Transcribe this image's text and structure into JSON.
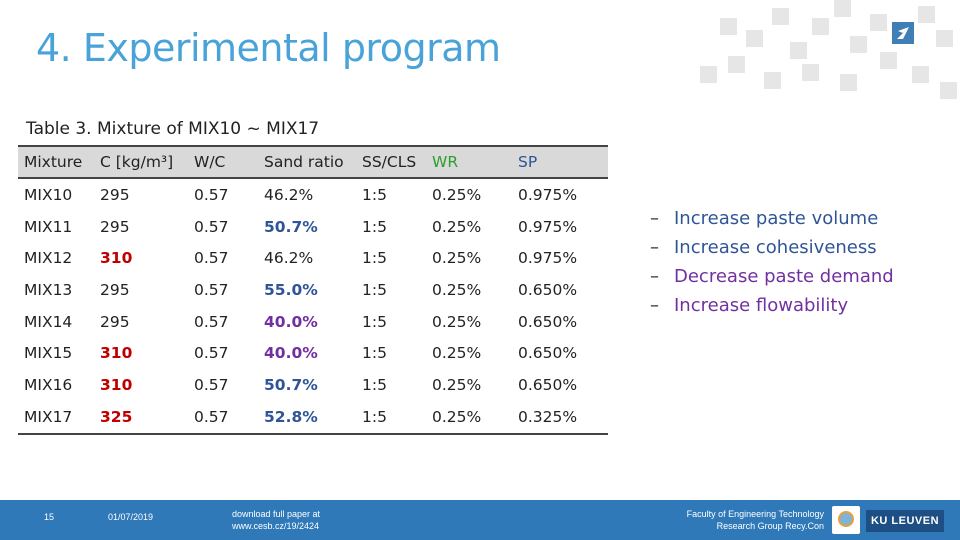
{
  "slide": {
    "title": "4. Experimental program",
    "caption": "Table 3. Mixture of MIX10 ~ MIX17"
  },
  "table": {
    "headers": [
      "Mixture",
      "C [kg/m³]",
      "W/C",
      "Sand ratio",
      "SS/CLS",
      "WR",
      "SP"
    ],
    "rows": [
      [
        "MIX10",
        "295",
        "0.57",
        "46.2%",
        "1:5",
        "0.25%",
        "0.975%"
      ],
      [
        "MIX11",
        "295",
        "0.57",
        "50.7%",
        "1:5",
        "0.25%",
        "0.975%"
      ],
      [
        "MIX12",
        "310",
        "0.57",
        "46.2%",
        "1:5",
        "0.25%",
        "0.975%"
      ],
      [
        "MIX13",
        "295",
        "0.57",
        "55.0%",
        "1:5",
        "0.25%",
        "0.650%"
      ],
      [
        "MIX14",
        "295",
        "0.57",
        "40.0%",
        "1:5",
        "0.25%",
        "0.650%"
      ],
      [
        "MIX15",
        "310",
        "0.57",
        "40.0%",
        "1:5",
        "0.25%",
        "0.650%"
      ],
      [
        "MIX16",
        "310",
        "0.57",
        "50.7%",
        "1:5",
        "0.25%",
        "0.650%"
      ],
      [
        "MIX17",
        "325",
        "0.57",
        "52.8%",
        "1:5",
        "0.25%",
        "0.325%"
      ]
    ]
  },
  "bullets": [
    "Increase paste volume",
    "Increase cohesiveness",
    "Decrease paste demand",
    "Increase flowability"
  ],
  "bullet_marker": "–",
  "footer": {
    "page_number": "15",
    "date": "01/07/2019",
    "download_line1": "download full paper at",
    "download_line2": "www.cesb.cz/19/2424",
    "faculty_line1": "Faculty of Engineering Technology",
    "faculty_line2": "Research Group Recy.Con",
    "university": "KU LEUVEN"
  },
  "colors": {
    "title": "#4aa3d8",
    "cement_highlight": "#c00000",
    "sand_blue": "#2f5597",
    "sand_purple": "#7030a0",
    "wr_header": "#2e9e2e",
    "footer_bar": "#2f79b8"
  },
  "icons": {
    "corner_logo": "arrow-logo-icon",
    "footer_logo": "recycon-logo-icon"
  }
}
